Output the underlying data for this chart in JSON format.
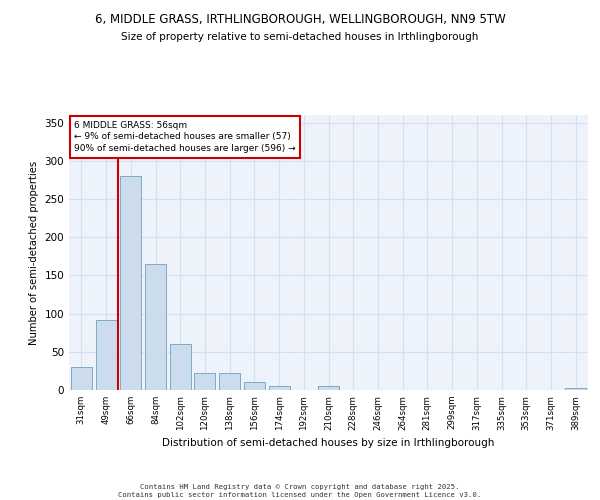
{
  "title1": "6, MIDDLE GRASS, IRTHLINGBOROUGH, WELLINGBOROUGH, NN9 5TW",
  "title2": "Size of property relative to semi-detached houses in Irthlingborough",
  "xlabel": "Distribution of semi-detached houses by size in Irthlingborough",
  "ylabel": "Number of semi-detached properties",
  "categories": [
    "31sqm",
    "49sqm",
    "66sqm",
    "84sqm",
    "102sqm",
    "120sqm",
    "138sqm",
    "156sqm",
    "174sqm",
    "192sqm",
    "210sqm",
    "228sqm",
    "246sqm",
    "264sqm",
    "281sqm",
    "299sqm",
    "317sqm",
    "335sqm",
    "353sqm",
    "371sqm",
    "389sqm"
  ],
  "values": [
    30,
    92,
    280,
    165,
    60,
    22,
    22,
    10,
    5,
    0,
    5,
    0,
    0,
    0,
    0,
    0,
    0,
    0,
    0,
    0,
    3
  ],
  "bar_color": "#ccdcec",
  "bar_edge_color": "#7aaac8",
  "grid_color": "#d4dff0",
  "bg_color": "#eef2fa",
  "vline_color": "#cc0000",
  "vline_x": 1.5,
  "annotation_text": "6 MIDDLE GRASS: 56sqm\n← 9% of semi-detached houses are smaller (57)\n90% of semi-detached houses are larger (596) →",
  "annotation_box_color": "#cc0000",
  "ylim": [
    0,
    360
  ],
  "yticks": [
    0,
    50,
    100,
    150,
    200,
    250,
    300,
    350
  ],
  "footer": "Contains HM Land Registry data © Crown copyright and database right 2025.\nContains public sector information licensed under the Open Government Licence v3.0."
}
